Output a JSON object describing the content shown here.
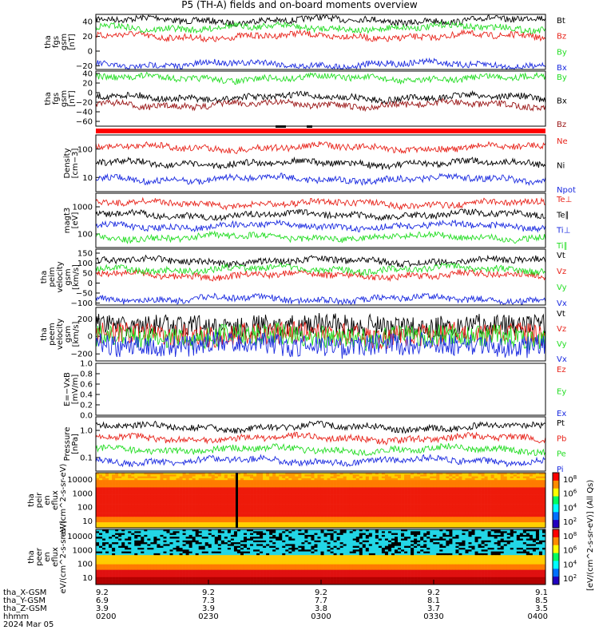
{
  "title": "P5 (TH-A) fields and on-board moments overview",
  "colors": {
    "black": "#000000",
    "red": "#e8231a",
    "green": "#22dd22",
    "blue": "#1a2ae0",
    "darkred": "#9a1515",
    "bar": "#ff0000"
  },
  "x_axis": {
    "ticks": [
      "0200",
      "0230",
      "0300",
      "0330",
      "0400"
    ],
    "rows": [
      {
        "label": "tha_X-GSM",
        "values": [
          "9.2",
          "9.2",
          "9.2",
          "9.2",
          "9.1"
        ]
      },
      {
        "label": "tha_Y-GSM",
        "values": [
          "6.9",
          "7.3",
          "7.7",
          "8.1",
          "8.5"
        ]
      },
      {
        "label": "tha_Z-GSM",
        "values": [
          "3.9",
          "3.9",
          "3.8",
          "3.7",
          "3.5"
        ]
      },
      {
        "label": "hhmm",
        "values": [
          "0200",
          "0230",
          "0300",
          "0330",
          "0400"
        ]
      }
    ],
    "date": "2024 Mar 05"
  },
  "colorbar": {
    "label": "[eV/(cm^2-s-sr-eV)] (All Qs)",
    "ticks_top": [
      "10^8",
      "10^6",
      "10^4",
      "10^2"
    ],
    "ticks_bottom": [
      "10^8",
      "10^6",
      "10^4",
      "10^2"
    ]
  },
  "chart_data": [
    {
      "type": "line",
      "ylabel": "tha fgs gsm [nT]",
      "ylim": [
        -25,
        50
      ],
      "ticks": [
        "40",
        "20",
        "0",
        "−20"
      ],
      "series": [
        {
          "name": "Bt",
          "color": "#000000",
          "level": 42
        },
        {
          "name": "Bz",
          "color": "#e8231a",
          "level": 20
        },
        {
          "name": "By",
          "color": "#22dd22",
          "level": 32
        },
        {
          "name": "Bx",
          "color": "#1a2ae0",
          "level": -18
        }
      ]
    },
    {
      "type": "line",
      "ylabel": "tha fgs gsm [nT]",
      "ylim": [
        -70,
        45
      ],
      "ticks": [
        "40",
        "20",
        "0",
        "−20",
        "−40",
        "−60"
      ],
      "series": [
        {
          "name": "By",
          "color": "#22dd22",
          "level": 30
        },
        {
          "name": "Bx",
          "color": "#000000",
          "level": -10
        },
        {
          "name": "Bz",
          "color": "#9a1515",
          "level": -25
        }
      ]
    },
    {
      "type": "line",
      "ylabel": "Density [cm−3]",
      "scale": "log",
      "ticks": [
        "100",
        "10"
      ],
      "series": [
        {
          "name": "Ne",
          "color": "#e8231a",
          "level": 14
        },
        {
          "name": "Ni",
          "color": "#000000",
          "level": 20
        },
        {
          "name": "Npot",
          "color": "#1a2ae0",
          "level": 100
        }
      ]
    },
    {
      "type": "line",
      "ylabel": "magt3 [eV]",
      "scale": "log",
      "ticks": [
        "1000",
        "100"
      ],
      "series": [
        {
          "name": "Te⊥",
          "color": "#e8231a",
          "level": 50
        },
        {
          "name": "Te∥",
          "color": "#000000",
          "level": 40
        },
        {
          "name": "Ti⊥",
          "color": "#1a2ae0",
          "level": 300
        },
        {
          "name": "Ti∥",
          "color": "#22dd22",
          "level": 100
        }
      ]
    },
    {
      "type": "line",
      "ylabel": "tha peim velocity gsm [km/s]",
      "ylim": [
        -110,
        170
      ],
      "ticks": [
        "150",
        "100",
        "50",
        "0",
        "−50",
        "−100"
      ],
      "series": [
        {
          "name": "Vt",
          "color": "#000000",
          "level": 110
        },
        {
          "name": "Vz",
          "color": "#e8231a",
          "level": 40
        },
        {
          "name": "Vy",
          "color": "#22dd22",
          "level": 70
        },
        {
          "name": "Vx",
          "color": "#1a2ae0",
          "level": -80
        }
      ]
    },
    {
      "type": "line",
      "ylabel": "tha peem velocity gsm [km/s]",
      "ylim": [
        -280,
        330
      ],
      "ticks": [
        "200",
        "0",
        "−200"
      ],
      "series": [
        {
          "name": "Vt",
          "color": "#000000",
          "level": 120
        },
        {
          "name": "Vz",
          "color": "#e8231a",
          "level": 20
        },
        {
          "name": "Vy",
          "color": "#22dd22",
          "level": 0
        },
        {
          "name": "Vx",
          "color": "#1a2ae0",
          "level": -100
        }
      ]
    },
    {
      "type": "line",
      "ylabel": "E=−VxB [mV/m]",
      "ylim": [
        0,
        1.0
      ],
      "ticks": [
        "1.0",
        "0.8",
        "0.6",
        "0.4",
        "0.2",
        "0.0"
      ],
      "series": [
        {
          "name": "Ez",
          "color": "#e8231a"
        },
        {
          "name": "Ey",
          "color": "#22dd22"
        },
        {
          "name": "Ex",
          "color": "#1a2ae0"
        }
      ]
    },
    {
      "type": "line",
      "ylabel": "Pressure [nPa]",
      "scale": "log",
      "ticks": [
        "1.0",
        "0.1"
      ],
      "series": [
        {
          "name": "Pt",
          "color": "#000000",
          "level": 1.0
        },
        {
          "name": "Pb",
          "color": "#e8231a",
          "level": 0.8
        },
        {
          "name": "Pe",
          "color": "#22dd22",
          "level": 0.03
        },
        {
          "name": "Pi",
          "color": "#1a2ae0",
          "level": 0.3
        }
      ]
    },
    {
      "type": "heatmap",
      "ylabel": "tha peir en eflux eV/(cm^2-s-sr-eV)",
      "scale": "log",
      "ticks": [
        "10000",
        "1000",
        "100",
        "10"
      ]
    },
    {
      "type": "heatmap",
      "ylabel": "tha peer en eflux eV/(cm^2-s-sr-eV)",
      "scale": "log",
      "ticks": [
        "10000",
        "1000",
        "100",
        "10"
      ]
    }
  ]
}
